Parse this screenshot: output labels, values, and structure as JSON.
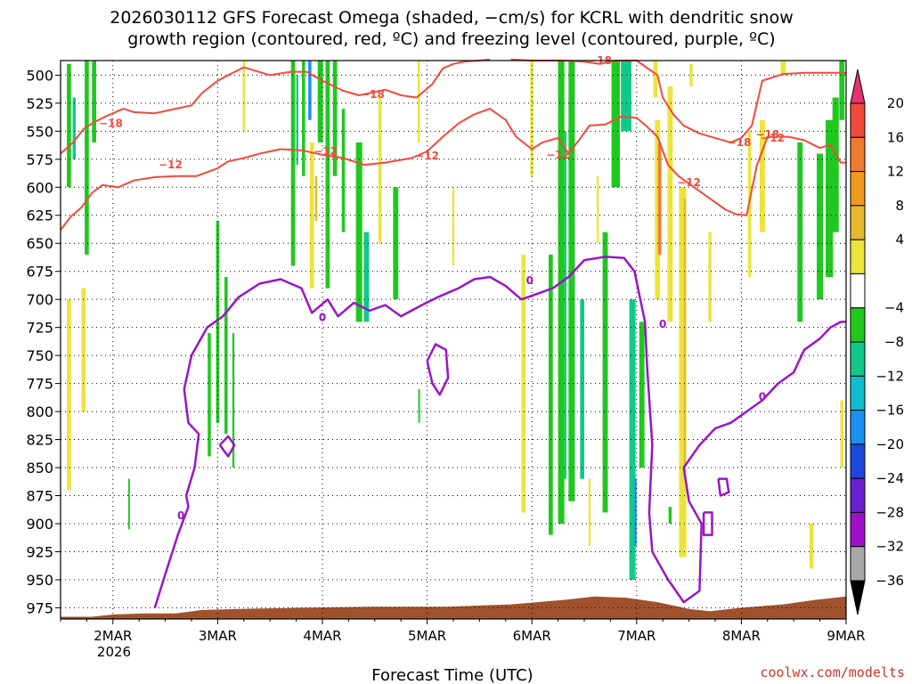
{
  "chart_data": {
    "type": "heatmap",
    "title_line1": "2026030112 GFS Forecast Omega (shaded, −cm/s) for KCRL with dendritic snow",
    "title_line2": "growth region (contoured, red, ºC) and freezing level (contoured, purple, ºC)",
    "xlabel": "Forecast Time (UTC)",
    "credit": "coolwx.com/modelts",
    "y_ticks": [
      500,
      525,
      550,
      575,
      600,
      625,
      650,
      675,
      700,
      725,
      750,
      775,
      800,
      825,
      850,
      875,
      900,
      925,
      950,
      975
    ],
    "ylim": [
      487,
      985
    ],
    "xlim_days": [
      1.5,
      9.0
    ],
    "x_ticks": [
      {
        "label": "2MAR",
        "day": 2
      },
      {
        "label": "3MAR",
        "day": 3
      },
      {
        "label": "4MAR",
        "day": 4
      },
      {
        "label": "5MAR",
        "day": 5
      },
      {
        "label": "6MAR",
        "day": 6
      },
      {
        "label": "7MAR",
        "day": 7
      },
      {
        "label": "8MAR",
        "day": 8
      },
      {
        "label": "9MAR",
        "day": 9
      }
    ],
    "year_label": "2026",
    "colorbar": {
      "labels": [
        "20",
        "16",
        "12",
        "8",
        "4",
        "−4",
        "−8",
        "−12",
        "−16",
        "−20",
        "−24",
        "−28",
        "−32",
        "−36"
      ],
      "colors": [
        "#e6336e",
        "#f04a3a",
        "#f07a30",
        "#f09a20",
        "#e6b830",
        "#ece43c",
        "#ffffff",
        "#1fc81f",
        "#10c88c",
        "#10bcd0",
        "#1890f0",
        "#1c48e0",
        "#6b1fd0",
        "#a00fc8",
        "#a8a8a8",
        "#000000"
      ]
    },
    "contours": {
      "dgz_labels": [
        "−18",
        "−18",
        "−18",
        "−18",
        "−18",
        "−12",
        "−12",
        "−12",
        "−12",
        "−12",
        "−12"
      ],
      "freezing_labels": [
        "0",
        "0",
        "0",
        "0",
        "0"
      ]
    },
    "omega_shades": [
      {
        "d": 1.58,
        "p1": 490,
        "p2": 600,
        "w": 0.04,
        "v": -8
      },
      {
        "d": 1.63,
        "p1": 520,
        "p2": 575,
        "w": 0.03,
        "v": -12
      },
      {
        "d": 1.75,
        "p1": 487,
        "p2": 660,
        "w": 0.04,
        "v": -8
      },
      {
        "d": 1.82,
        "p1": 487,
        "p2": 560,
        "w": 0.04,
        "v": -8
      },
      {
        "d": 1.58,
        "p1": 700,
        "p2": 870,
        "w": 0.04,
        "v": 5
      },
      {
        "d": 1.72,
        "p1": 690,
        "p2": 800,
        "w": 0.04,
        "v": 5
      },
      {
        "d": 2.15,
        "p1": 860,
        "p2": 905,
        "w": 0.01,
        "v": -8
      },
      {
        "d": 2.92,
        "p1": 730,
        "p2": 840,
        "w": 0.03,
        "v": -8
      },
      {
        "d": 3.0,
        "p1": 630,
        "p2": 810,
        "w": 0.03,
        "v": -8
      },
      {
        "d": 3.08,
        "p1": 680,
        "p2": 820,
        "w": 0.03,
        "v": -8
      },
      {
        "d": 3.15,
        "p1": 730,
        "p2": 850,
        "w": 0.02,
        "v": -8
      },
      {
        "d": 3.25,
        "p1": 487,
        "p2": 550,
        "w": 0.02,
        "v": 5
      },
      {
        "d": 3.72,
        "p1": 487,
        "p2": 670,
        "w": 0.04,
        "v": -8
      },
      {
        "d": 3.76,
        "p1": 500,
        "p2": 580,
        "w": 0.02,
        "v": -12
      },
      {
        "d": 3.82,
        "p1": 487,
        "p2": 590,
        "w": 0.03,
        "v": -8
      },
      {
        "d": 3.88,
        "p1": 487,
        "p2": 540,
        "w": 0.03,
        "v": -16
      },
      {
        "d": 3.9,
        "p1": 560,
        "p2": 690,
        "w": 0.04,
        "v": 5
      },
      {
        "d": 3.94,
        "p1": 590,
        "p2": 630,
        "w": 0.02,
        "v": 9
      },
      {
        "d": 3.98,
        "p1": 487,
        "p2": 560,
        "w": 0.05,
        "v": -8
      },
      {
        "d": 4.05,
        "p1": 487,
        "p2": 690,
        "w": 0.04,
        "v": -8
      },
      {
        "d": 4.12,
        "p1": 487,
        "p2": 590,
        "w": 0.04,
        "v": -8
      },
      {
        "d": 4.2,
        "p1": 530,
        "p2": 640,
        "w": 0.03,
        "v": -8
      },
      {
        "d": 4.35,
        "p1": 560,
        "p2": 720,
        "w": 0.06,
        "v": -8
      },
      {
        "d": 4.42,
        "p1": 640,
        "p2": 720,
        "w": 0.05,
        "v": -12
      },
      {
        "d": 4.55,
        "p1": 520,
        "p2": 650,
        "w": 0.03,
        "v": 5
      },
      {
        "d": 4.7,
        "p1": 600,
        "p2": 700,
        "w": 0.05,
        "v": -8
      },
      {
        "d": 4.92,
        "p1": 487,
        "p2": 560,
        "w": 0.02,
        "v": 5
      },
      {
        "d": 4.92,
        "p1": 780,
        "p2": 810,
        "w": 0.01,
        "v": -8
      },
      {
        "d": 5.25,
        "p1": 600,
        "p2": 670,
        "w": 0.02,
        "v": 5
      },
      {
        "d": 5.92,
        "p1": 660,
        "p2": 890,
        "w": 0.04,
        "v": 5
      },
      {
        "d": 6.0,
        "p1": 487,
        "p2": 590,
        "w": 0.03,
        "v": 5
      },
      {
        "d": 6.18,
        "p1": 660,
        "p2": 910,
        "w": 0.04,
        "v": -8
      },
      {
        "d": 6.28,
        "p1": 487,
        "p2": 900,
        "w": 0.06,
        "v": -8
      },
      {
        "d": 6.32,
        "p1": 550,
        "p2": 860,
        "w": 0.02,
        "v": -12
      },
      {
        "d": 6.38,
        "p1": 487,
        "p2": 880,
        "w": 0.06,
        "v": -8
      },
      {
        "d": 6.48,
        "p1": 700,
        "p2": 860,
        "w": 0.04,
        "v": -12
      },
      {
        "d": 6.55,
        "p1": 860,
        "p2": 920,
        "w": 0.02,
        "v": 5
      },
      {
        "d": 6.63,
        "p1": 590,
        "p2": 650,
        "w": 0.02,
        "v": 5
      },
      {
        "d": 6.7,
        "p1": 640,
        "p2": 890,
        "w": 0.05,
        "v": -8
      },
      {
        "d": 6.8,
        "p1": 487,
        "p2": 600,
        "w": 0.08,
        "v": -8
      },
      {
        "d": 6.9,
        "p1": 487,
        "p2": 550,
        "w": 0.1,
        "v": -12
      },
      {
        "d": 6.96,
        "p1": 700,
        "p2": 950,
        "w": 0.06,
        "v": -12
      },
      {
        "d": 6.99,
        "p1": 860,
        "p2": 920,
        "w": 0.02,
        "v": -16
      },
      {
        "d": 7.05,
        "p1": 720,
        "p2": 850,
        "w": 0.05,
        "v": -8
      },
      {
        "d": 7.18,
        "p1": 487,
        "p2": 520,
        "w": 0.04,
        "v": 5
      },
      {
        "d": 7.2,
        "p1": 540,
        "p2": 700,
        "w": 0.05,
        "v": 5
      },
      {
        "d": 7.22,
        "p1": 560,
        "p2": 660,
        "w": 0.03,
        "v": 13
      },
      {
        "d": 7.32,
        "p1": 510,
        "p2": 720,
        "w": 0.05,
        "v": 5
      },
      {
        "d": 7.32,
        "p1": 885,
        "p2": 900,
        "w": 0.03,
        "v": -8
      },
      {
        "d": 7.44,
        "p1": 600,
        "p2": 930,
        "w": 0.07,
        "v": 5
      },
      {
        "d": 7.46,
        "p1": 610,
        "p2": 860,
        "w": 0.02,
        "v": 9
      },
      {
        "d": 7.52,
        "p1": 490,
        "p2": 510,
        "w": 0.03,
        "v": 5
      },
      {
        "d": 7.7,
        "p1": 640,
        "p2": 720,
        "w": 0.03,
        "v": 5
      },
      {
        "d": 8.08,
        "p1": 550,
        "p2": 680,
        "w": 0.03,
        "v": 5
      },
      {
        "d": 8.2,
        "p1": 540,
        "p2": 640,
        "w": 0.05,
        "v": 5
      },
      {
        "d": 8.4,
        "p1": 487,
        "p2": 500,
        "w": 0.05,
        "v": 5
      },
      {
        "d": 8.56,
        "p1": 560,
        "p2": 720,
        "w": 0.05,
        "v": -8
      },
      {
        "d": 8.67,
        "p1": 900,
        "p2": 940,
        "w": 0.04,
        "v": 5
      },
      {
        "d": 8.75,
        "p1": 570,
        "p2": 700,
        "w": 0.06,
        "v": -8
      },
      {
        "d": 8.84,
        "p1": 540,
        "p2": 680,
        "w": 0.07,
        "v": -8
      },
      {
        "d": 8.9,
        "p1": 520,
        "p2": 640,
        "w": 0.06,
        "v": -8
      },
      {
        "d": 8.96,
        "p1": 487,
        "p2": 540,
        "w": 0.05,
        "v": -8
      },
      {
        "d": 8.96,
        "p1": 790,
        "p2": 850,
        "w": 0.03,
        "v": 5
      }
    ],
    "dgz_minus18_line": [
      [
        1.5,
        570
      ],
      [
        1.62,
        560
      ],
      [
        1.72,
        548
      ],
      [
        1.82,
        542
      ],
      [
        1.95,
        536
      ],
      [
        2.1,
        530
      ],
      [
        2.2,
        533
      ],
      [
        2.4,
        534
      ],
      [
        2.6,
        530
      ],
      [
        2.75,
        527
      ],
      [
        2.85,
        516
      ],
      [
        3.0,
        505
      ],
      [
        3.1,
        500
      ],
      [
        3.25,
        493
      ],
      [
        3.5,
        500
      ],
      [
        3.7,
        497
      ],
      [
        3.85,
        497
      ],
      [
        4.0,
        505
      ],
      [
        4.2,
        514
      ],
      [
        4.35,
        518
      ],
      [
        4.6,
        513
      ],
      [
        4.75,
        518
      ],
      [
        4.9,
        520
      ],
      [
        5.05,
        508
      ],
      [
        5.15,
        494
      ],
      [
        5.25,
        490
      ],
      [
        5.35,
        488
      ],
      [
        5.5,
        487
      ],
      [
        5.6,
        486
      ]
    ],
    "dgz_minus18_right": [
      [
        5.8,
        486
      ],
      [
        6.0,
        487
      ],
      [
        6.3,
        487
      ],
      [
        6.5,
        488
      ],
      [
        6.65,
        490
      ],
      [
        6.8,
        487
      ],
      [
        7.0,
        487
      ],
      [
        7.2,
        500
      ],
      [
        7.25,
        520
      ],
      [
        7.35,
        535
      ],
      [
        7.45,
        545
      ],
      [
        7.6,
        552
      ],
      [
        7.75,
        556
      ],
      [
        7.9,
        560
      ],
      [
        8.0,
        556
      ],
      [
        8.1,
        545
      ],
      [
        8.2,
        505
      ],
      [
        8.4,
        499
      ],
      [
        8.6,
        498
      ],
      [
        8.8,
        498
      ],
      [
        9.0,
        498
      ]
    ],
    "dgz_minus12_line": [
      [
        1.5,
        638
      ],
      [
        1.6,
        626
      ],
      [
        1.7,
        618
      ],
      [
        1.8,
        605
      ],
      [
        1.9,
        598
      ],
      [
        2.05,
        600
      ],
      [
        2.2,
        594
      ],
      [
        2.4,
        591
      ],
      [
        2.6,
        590
      ],
      [
        2.8,
        590
      ],
      [
        3.0,
        583
      ],
      [
        3.1,
        577
      ],
      [
        3.25,
        574
      ],
      [
        3.4,
        570
      ],
      [
        3.6,
        566
      ],
      [
        3.8,
        567
      ],
      [
        4.0,
        571
      ],
      [
        4.2,
        574
      ],
      [
        4.4,
        580
      ],
      [
        4.6,
        578
      ],
      [
        4.85,
        574
      ],
      [
        5.0,
        568
      ],
      [
        5.15,
        555
      ],
      [
        5.3,
        543
      ],
      [
        5.45,
        535
      ],
      [
        5.6,
        530
      ],
      [
        5.75,
        540
      ],
      [
        5.85,
        555
      ],
      [
        6.0,
        566
      ],
      [
        6.1,
        560
      ],
      [
        6.25,
        556
      ],
      [
        6.35,
        570
      ],
      [
        6.45,
        558
      ],
      [
        6.55,
        545
      ],
      [
        6.7,
        544
      ],
      [
        6.85,
        537
      ],
      [
        7.0,
        538
      ],
      [
        7.1,
        546
      ],
      [
        7.2,
        555
      ],
      [
        7.3,
        580
      ],
      [
        7.4,
        590
      ],
      [
        7.55,
        600
      ],
      [
        7.7,
        610
      ],
      [
        7.85,
        620
      ],
      [
        7.95,
        624
      ],
      [
        8.05,
        625
      ],
      [
        8.15,
        580
      ],
      [
        8.25,
        555
      ],
      [
        8.45,
        555
      ],
      [
        8.6,
        558
      ],
      [
        8.75,
        565
      ],
      [
        8.85,
        562
      ],
      [
        8.95,
        578
      ],
      [
        9.0,
        578
      ]
    ],
    "freezing_line_main": [
      [
        2.4,
        975
      ],
      [
        2.5,
        945
      ],
      [
        2.62,
        910
      ],
      [
        2.72,
        885
      ],
      [
        2.7,
        875
      ],
      [
        2.78,
        850
      ],
      [
        2.82,
        820
      ],
      [
        2.72,
        810
      ],
      [
        2.68,
        780
      ],
      [
        2.75,
        750
      ],
      [
        2.9,
        725
      ],
      [
        3.05,
        715
      ],
      [
        3.2,
        698
      ],
      [
        3.4,
        686
      ],
      [
        3.6,
        682
      ],
      [
        3.8,
        690
      ],
      [
        3.9,
        712
      ],
      [
        4.05,
        700
      ],
      [
        4.15,
        715
      ],
      [
        4.3,
        703
      ],
      [
        4.45,
        710
      ],
      [
        4.6,
        705
      ],
      [
        4.75,
        715
      ],
      [
        4.95,
        705
      ],
      [
        5.1,
        698
      ],
      [
        5.3,
        690
      ],
      [
        5.45,
        682
      ],
      [
        5.6,
        680
      ],
      [
        5.75,
        688
      ],
      [
        5.9,
        700
      ],
      [
        6.05,
        695
      ],
      [
        6.2,
        690
      ],
      [
        6.35,
        680
      ],
      [
        6.5,
        665
      ],
      [
        6.7,
        662
      ],
      [
        6.88,
        663
      ],
      [
        6.98,
        675
      ],
      [
        7.08,
        720
      ],
      [
        7.1,
        760
      ],
      [
        7.15,
        830
      ],
      [
        7.12,
        890
      ],
      [
        7.15,
        925
      ],
      [
        7.3,
        950
      ],
      [
        7.45,
        970
      ],
      [
        7.6,
        960
      ],
      [
        7.62,
        900
      ],
      [
        7.5,
        880
      ],
      [
        7.45,
        850
      ],
      [
        7.6,
        830
      ],
      [
        7.75,
        815
      ],
      [
        7.9,
        810
      ],
      [
        8.05,
        800
      ],
      [
        8.2,
        790
      ],
      [
        8.35,
        775
      ],
      [
        8.5,
        765
      ],
      [
        8.6,
        745
      ],
      [
        8.75,
        735
      ],
      [
        8.85,
        725
      ],
      [
        8.95,
        720
      ],
      [
        9.0,
        720
      ]
    ],
    "freezing_loop_a": [
      [
        5.0,
        755
      ],
      [
        5.08,
        740
      ],
      [
        5.18,
        745
      ],
      [
        5.2,
        770
      ],
      [
        5.12,
        785
      ],
      [
        5.05,
        775
      ],
      [
        5.0,
        755
      ]
    ],
    "freezing_loop_b": [
      [
        3.02,
        830
      ],
      [
        3.1,
        822
      ],
      [
        3.16,
        830
      ],
      [
        3.1,
        840
      ],
      [
        3.02,
        830
      ]
    ],
    "freezing_loop_c": [
      [
        7.78,
        860
      ],
      [
        7.86,
        860
      ],
      [
        7.88,
        872
      ],
      [
        7.8,
        875
      ],
      [
        7.78,
        860
      ]
    ],
    "freezing_loop_d": [
      [
        7.64,
        890
      ],
      [
        7.72,
        890
      ],
      [
        7.72,
        910
      ],
      [
        7.64,
        910
      ],
      [
        7.64,
        890
      ]
    ],
    "terrain_day_pressure": [
      [
        1.5,
        983
      ],
      [
        1.8,
        983
      ],
      [
        2.0,
        981
      ],
      [
        2.3,
        980
      ],
      [
        2.6,
        980
      ],
      [
        2.85,
        977
      ],
      [
        3.2,
        976
      ],
      [
        3.8,
        975
      ],
      [
        4.5,
        974
      ],
      [
        5.2,
        974
      ],
      [
        5.8,
        972
      ],
      [
        6.3,
        968
      ],
      [
        6.6,
        965
      ],
      [
        6.9,
        966
      ],
      [
        7.2,
        970
      ],
      [
        7.5,
        976
      ],
      [
        7.7,
        978
      ],
      [
        8.0,
        975
      ],
      [
        8.4,
        972
      ],
      [
        8.7,
        968
      ],
      [
        9.0,
        965
      ]
    ]
  }
}
